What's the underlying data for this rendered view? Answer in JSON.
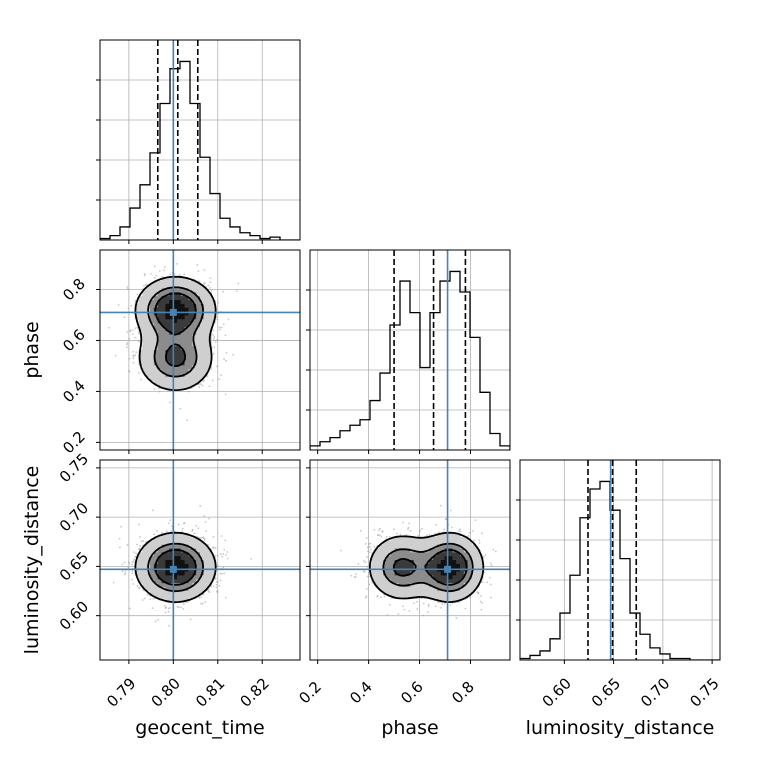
{
  "chart_data": {
    "type": "corner",
    "parameters": [
      "geocent_time",
      "phase",
      "luminosity_distance"
    ],
    "truths": {
      "geocent_time": 0.8,
      "phase": 0.71,
      "luminosity_distance": 0.647
    },
    "truth_color": "#4682b4",
    "quantiles": {
      "geocent_time": [
        0.7965,
        0.801,
        0.8055
      ],
      "phase": [
        0.5,
        0.655,
        0.78
      ],
      "luminosity_distance": [
        0.624,
        0.649,
        0.673
      ]
    },
    "ranges": {
      "geocent_time": [
        0.7835,
        0.8285
      ],
      "phase": [
        0.17,
        0.955
      ],
      "luminosity_distance": [
        0.555,
        0.758
      ]
    },
    "ticks": {
      "geocent_time": [
        "0.79",
        "0.80",
        "0.81",
        "0.82"
      ],
      "phase": [
        "0.2",
        "0.4",
        "0.6",
        "0.8"
      ],
      "luminosity_distance": [
        "0.60",
        "0.65",
        "0.70",
        "0.75"
      ]
    },
    "y_ticks": {
      "phase": [
        "0.2",
        "0.4",
        "0.6",
        "0.8"
      ],
      "luminosity_distance": [
        "0.60",
        "0.65",
        "0.70",
        "0.75"
      ]
    },
    "histograms": {
      "geocent_time": {
        "edges_start": 0.7835,
        "bin_width": 0.00225,
        "counts": [
          1,
          3,
          9,
          22,
          38,
          60,
          94,
          118,
          123,
          94,
          57,
          32,
          15,
          9,
          5,
          3,
          1,
          2,
          0,
          0
        ]
      },
      "phase": {
        "edges_start": 0.17,
        "bin_width": 0.03925,
        "counts": [
          3,
          6,
          9,
          14,
          18,
          22,
          36,
          56,
          91,
          123,
          100,
          60,
          100,
          123,
          130,
          115,
          82,
          42,
          12,
          3
        ]
      },
      "luminosity_distance": {
        "edges_start": 0.555,
        "bin_width": 0.01015,
        "counts": [
          1,
          3,
          6,
          14,
          31,
          56,
          94,
          113,
          118,
          99,
          67,
          31,
          17,
          8,
          4,
          1,
          1,
          0,
          0,
          0
        ]
      }
    },
    "grid": true
  }
}
